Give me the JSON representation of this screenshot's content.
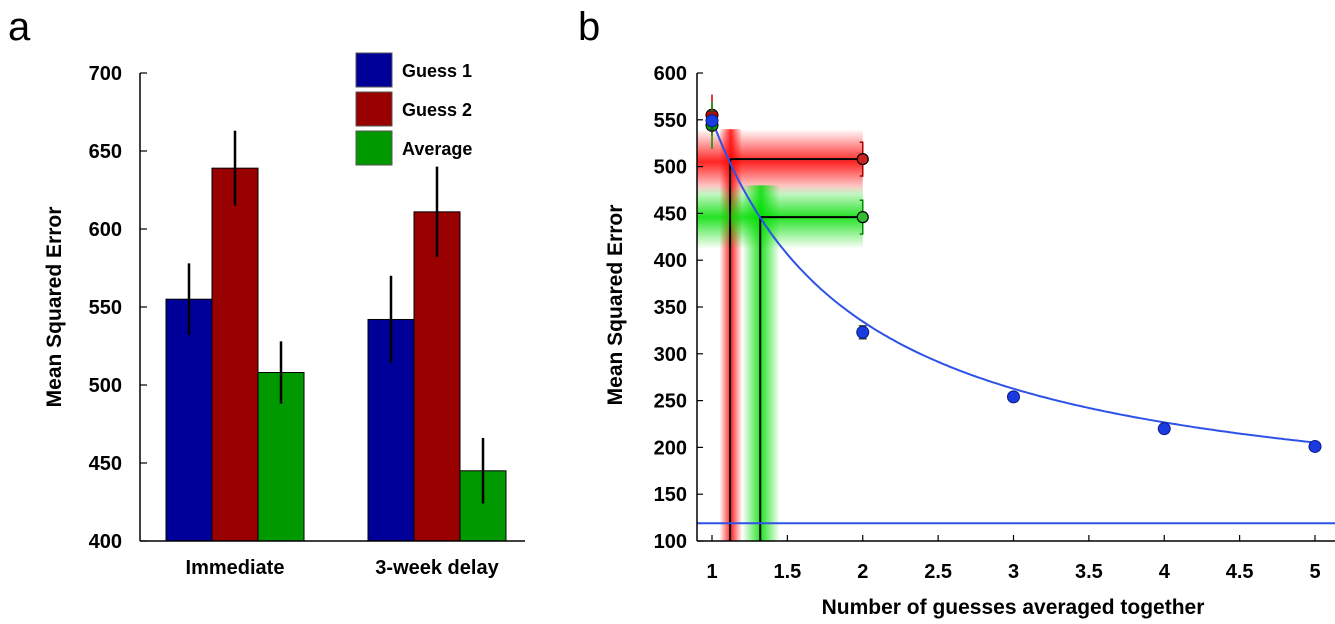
{
  "chart_data": [
    {
      "panel": "a",
      "type": "bar",
      "ylabel": "Mean Squared Error",
      "xlabel": "",
      "ylim": [
        400,
        700
      ],
      "yticks": [
        400,
        450,
        500,
        550,
        600,
        650,
        700
      ],
      "categories": [
        "Immediate",
        "3-week delay"
      ],
      "series": [
        {
          "name": "Guess 1",
          "color": "#000099",
          "values": [
            555,
            542
          ],
          "errors": [
            23,
            28
          ]
        },
        {
          "name": "Guess 2",
          "color": "#990000",
          "values": [
            639,
            611
          ],
          "errors": [
            24,
            29
          ]
        },
        {
          "name": "Average",
          "color": "#009900",
          "values": [
            508,
            445
          ],
          "errors": [
            20,
            21
          ]
        }
      ],
      "legend_position": "top-right",
      "grid": false
    },
    {
      "panel": "b",
      "type": "scatter",
      "ylabel": "Mean Squared Error",
      "xlabel": "Number of guesses averaged together",
      "xlim": [
        0.95,
        5.1
      ],
      "ylim": [
        100,
        600
      ],
      "xticks": [
        1,
        1.5,
        2,
        2.5,
        3,
        3.5,
        4,
        4.5,
        5
      ],
      "yticks": [
        100,
        150,
        200,
        250,
        300,
        350,
        400,
        450,
        500,
        550,
        600
      ],
      "points": {
        "color": "#1a3be0",
        "x": [
          1,
          2,
          3,
          4,
          5
        ],
        "y": [
          549,
          323,
          254,
          220,
          201
        ],
        "errors": [
          10,
          7,
          5,
          4,
          3
        ]
      },
      "guess_points": [
        {
          "x": 1,
          "y": 555,
          "color": "#cc0000",
          "error": 22
        },
        {
          "x": 1,
          "y": 544,
          "color": "#009900",
          "error": 25
        }
      ],
      "fit_curve": {
        "color": "#2e52e8",
        "asymptote": 119,
        "scale": 431
      },
      "asymptote_line": {
        "y": 119,
        "color": "#2e52e8"
      },
      "bands": [
        {
          "name": "red",
          "color": "#ff0000",
          "x_equiv": 1.12,
          "y": 508,
          "y_band": [
            470,
            540
          ],
          "x_band": [
            1.05,
            1.2
          ],
          "marker_x": 2,
          "error": 18
        },
        {
          "name": "green",
          "color": "#00dd00",
          "x_equiv": 1.32,
          "y": 446,
          "y_band": [
            412,
            480
          ],
          "x_band": [
            1.2,
            1.45
          ],
          "marker_x": 2,
          "error": 18
        }
      ],
      "grid": false
    }
  ],
  "panel_labels": [
    "a",
    "b"
  ]
}
